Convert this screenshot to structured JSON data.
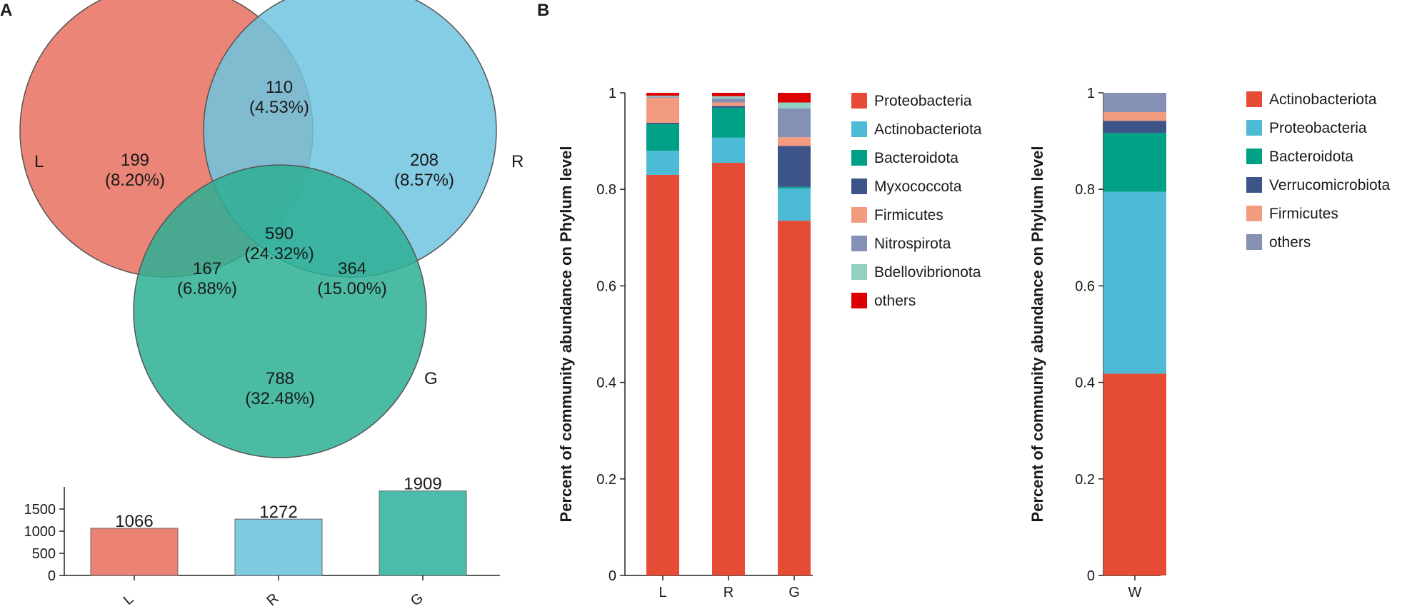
{
  "panels": {
    "a": "A",
    "b": "B"
  },
  "venn": {
    "sets": [
      {
        "label": "L",
        "color": "#E8705F"
      },
      {
        "label": "R",
        "color": "#6EC4DF"
      },
      {
        "label": "G",
        "color": "#2DAF94"
      }
    ],
    "regions": {
      "L_only": {
        "count": "199",
        "pct": "(8.20%)"
      },
      "R_only": {
        "count": "208",
        "pct": "(8.57%)"
      },
      "G_only": {
        "count": "788",
        "pct": "(32.48%)"
      },
      "LR": {
        "count": "110",
        "pct": "(4.53%)"
      },
      "LG": {
        "count": "167",
        "pct": "(6.88%)"
      },
      "RG": {
        "count": "364",
        "pct": "(15.00%)"
      },
      "LRG": {
        "count": "590",
        "pct": "(24.32%)"
      }
    }
  },
  "chart_data": [
    {
      "type": "bar",
      "title": "",
      "categories": [
        "L",
        "R",
        "G"
      ],
      "values": [
        1066,
        1272,
        1909
      ],
      "value_labels": [
        "1066",
        "1272",
        "1909"
      ],
      "colors": [
        "#EC8273",
        "#7FCCE0",
        "#4ABCA9"
      ],
      "ylim": [
        0,
        2000
      ],
      "yticks": [
        0,
        500,
        1000,
        1500
      ],
      "ytick_labels": [
        "0",
        "500",
        "1000",
        "1500"
      ],
      "xlabel": "",
      "ylabel": ""
    },
    {
      "type": "bar",
      "stacked": true,
      "ylabel": "Percent of community abundance on Phylum level",
      "categories": [
        "L",
        "R",
        "G"
      ],
      "ylim": [
        0,
        1
      ],
      "yticks": [
        0,
        0.2,
        0.4,
        0.6,
        0.8,
        1
      ],
      "ytick_labels": [
        "0",
        "0.2",
        "0.4",
        "0.6",
        "0.8",
        "1"
      ],
      "series": [
        {
          "name": "Proteobacteria",
          "color": "#E64B35",
          "values": [
            0.83,
            0.855,
            0.735
          ]
        },
        {
          "name": "Actinobacteriota",
          "color": "#4DBBD5",
          "values": [
            0.05,
            0.052,
            0.067
          ]
        },
        {
          "name": "Bacteroidota",
          "color": "#00A087",
          "values": [
            0.055,
            0.062,
            0.003
          ]
        },
        {
          "name": "Myxococcota",
          "color": "#3C5488",
          "values": [
            0.003,
            0.004,
            0.085
          ]
        },
        {
          "name": "Firmicutes",
          "color": "#F39B7F",
          "values": [
            0.052,
            0.007,
            0.018
          ]
        },
        {
          "name": "Nitrospirota",
          "color": "#8491B4",
          "values": [
            0.002,
            0.008,
            0.06
          ]
        },
        {
          "name": "Bdellovibrionota",
          "color": "#91D1C2",
          "values": [
            0.002,
            0.005,
            0.012
          ]
        },
        {
          "name": "others",
          "color": "#DC0000",
          "values": [
            0.006,
            0.007,
            0.02
          ]
        }
      ]
    },
    {
      "type": "bar",
      "stacked": true,
      "ylabel": "Percent of community abundance on Phylum level",
      "categories": [
        "W"
      ],
      "ylim": [
        0,
        1
      ],
      "yticks": [
        0,
        0.2,
        0.4,
        0.6,
        0.8,
        1
      ],
      "ytick_labels": [
        "0",
        "0.2",
        "0.4",
        "0.6",
        "0.8",
        "1"
      ],
      "series": [
        {
          "name": "Actinobacteriota",
          "color": "#E64B35",
          "values": [
            0.418
          ]
        },
        {
          "name": "Proteobacteria",
          "color": "#4DBBD5",
          "values": [
            0.377
          ]
        },
        {
          "name": "Bacteroidota",
          "color": "#00A087",
          "values": [
            0.122
          ]
        },
        {
          "name": "Verrucomicrobiota",
          "color": "#3C5488",
          "values": [
            0.025
          ]
        },
        {
          "name": "Firmicutes",
          "color": "#F39B7F",
          "values": [
            0.018
          ]
        },
        {
          "name": "others",
          "color": "#8491B4",
          "values": [
            0.04
          ]
        }
      ]
    }
  ]
}
